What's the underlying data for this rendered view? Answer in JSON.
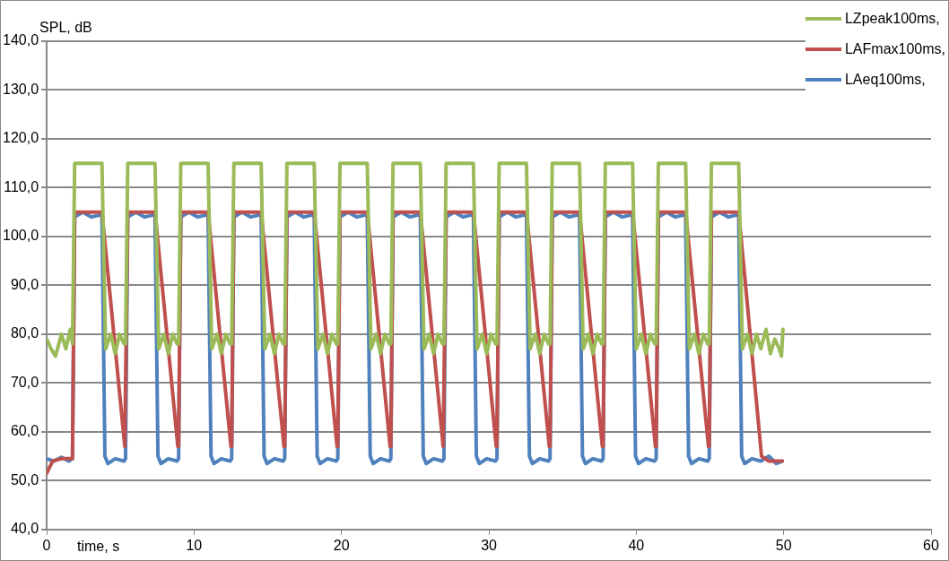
{
  "chart_data": {
    "type": "line",
    "xlabel": "time, s",
    "ylabel": "SPL, dB",
    "legend": "top right",
    "grid": "y",
    "marker": "none",
    "line_style": "solid",
    "xlim": [
      0,
      60
    ],
    "xticks": [
      0,
      10,
      20,
      30,
      40,
      50,
      60
    ],
    "ylim": [
      40,
      140
    ],
    "yticks": [
      {
        "value": 40,
        "label": "40,0"
      },
      {
        "value": 50,
        "label": "50,0"
      },
      {
        "value": 60,
        "label": "60,0"
      },
      {
        "value": 70,
        "label": "70,0"
      },
      {
        "value": 80,
        "label": "80,0"
      },
      {
        "value": 90,
        "label": "90,0"
      },
      {
        "value": 100,
        "label": "100,0"
      },
      {
        "value": 110,
        "label": "110,0"
      },
      {
        "value": 120,
        "label": "120,0"
      },
      {
        "value": 130,
        "label": "130,0"
      },
      {
        "value": 140,
        "label": "140,0"
      }
    ],
    "series": [
      {
        "name": "LZpeak100ms,",
        "color": "#9bbb59",
        "x": [
          0,
          0.3,
          0.6,
          1.0,
          1.3,
          1.6,
          1.75,
          1.9,
          2.75,
          3.75,
          4,
          4.35,
          4.65,
          4.95,
          5.25,
          5.35,
          5.5,
          6.35,
          7.35,
          7.6,
          7.95,
          8.25,
          8.55,
          8.85,
          8.95,
          9.1,
          9.95,
          10.95,
          11.2,
          11.55,
          11.85,
          12.15,
          12.45,
          12.55,
          12.7,
          13.55,
          14.55,
          14.8,
          15.15,
          15.45,
          15.75,
          16.05,
          16.15,
          16.3,
          17.15,
          18.15,
          18.4,
          18.75,
          19.05,
          19.35,
          19.65,
          19.75,
          19.9,
          20.75,
          21.75,
          22,
          22.35,
          22.65,
          22.95,
          23.25,
          23.35,
          23.5,
          24.35,
          25.35,
          25.6,
          25.95,
          26.25,
          26.55,
          26.85,
          26.95,
          27.1,
          27.95,
          28.95,
          29.2,
          29.55,
          29.85,
          30.15,
          30.45,
          30.55,
          30.7,
          31.55,
          32.55,
          32.8,
          33.15,
          33.45,
          33.75,
          34.05,
          34.15,
          34.3,
          35.15,
          36.15,
          36.4,
          36.75,
          37.05,
          37.35,
          37.65,
          37.75,
          37.9,
          38.75,
          39.75,
          40,
          40.35,
          40.65,
          40.95,
          41.25,
          41.35,
          41.5,
          42.35,
          43.35,
          43.6,
          43.95,
          44.25,
          44.55,
          44.85,
          44.95,
          45.1,
          45.95,
          46.95,
          47.2,
          47.55,
          47.85,
          48.15,
          48.45,
          48.8,
          49.1,
          49.4,
          49.7,
          49.85,
          49.95
        ],
        "values": [
          79,
          77,
          75.5,
          80,
          77,
          81,
          78,
          115,
          115,
          115,
          77,
          80,
          76,
          80,
          78,
          78,
          115,
          115,
          115,
          77,
          80,
          76,
          80,
          78,
          78,
          115,
          115,
          115,
          77,
          80,
          76,
          80,
          78,
          78,
          115,
          115,
          115,
          77,
          80,
          76,
          80,
          78,
          78,
          115,
          115,
          115,
          77,
          80,
          76,
          80,
          78,
          78,
          115,
          115,
          115,
          77,
          80,
          76,
          80,
          78,
          78,
          115,
          115,
          115,
          77,
          80,
          76,
          80,
          78,
          78,
          115,
          115,
          115,
          77,
          80,
          76,
          80,
          78,
          78,
          115,
          115,
          115,
          77,
          80,
          76,
          80,
          78,
          78,
          115,
          115,
          115,
          77,
          80,
          76,
          80,
          78,
          78,
          115,
          115,
          115,
          77,
          80,
          76,
          80,
          78,
          78,
          115,
          115,
          115,
          77,
          80,
          76,
          80,
          78,
          78,
          115,
          115,
          115,
          77,
          80,
          76,
          80,
          77,
          81,
          76,
          79,
          77,
          75.5,
          81
        ]
      },
      {
        "name": "LAFmax100ms,",
        "color": "#c0504d",
        "x": [
          0,
          0.4,
          1,
          1.75,
          1.9,
          3.75,
          5.3,
          5.35,
          5.5,
          7.35,
          8.9,
          8.95,
          9.1,
          10.95,
          12.5,
          12.55,
          12.7,
          14.55,
          16.1,
          16.15,
          16.3,
          18.15,
          19.7,
          19.75,
          19.9,
          21.75,
          23.3,
          23.35,
          23.5,
          25.35,
          26.9,
          26.95,
          27.1,
          28.95,
          30.5,
          30.55,
          30.7,
          32.55,
          34.1,
          34.15,
          34.3,
          36.15,
          37.7,
          37.75,
          37.9,
          39.75,
          41.3,
          41.35,
          41.5,
          43.35,
          44.9,
          44.95,
          45.1,
          46.95,
          48.5,
          49.0,
          49.9
        ],
        "values": [
          51.5,
          54,
          54.5,
          54.5,
          105,
          105,
          57,
          57,
          105,
          105,
          57,
          57,
          105,
          105,
          57,
          57,
          105,
          105,
          57,
          57,
          105,
          105,
          57,
          57,
          105,
          105,
          57,
          57,
          105,
          105,
          57,
          57,
          105,
          105,
          57,
          57,
          105,
          105,
          57,
          57,
          105,
          105,
          57,
          57,
          105,
          105,
          57,
          57,
          105,
          105,
          57,
          57,
          105,
          105,
          55,
          54,
          54
        ]
      },
      {
        "name": "LAeq100ms,",
        "color": "#4f81bd",
        "x": [
          0,
          0.5,
          1,
          1.5,
          1.75,
          1.9,
          2.45,
          3.05,
          3.75,
          3.95,
          4.15,
          4.65,
          5.25,
          5.35,
          5.5,
          6.05,
          6.65,
          7.35,
          7.55,
          7.75,
          8.25,
          8.85,
          8.95,
          9.1,
          9.65,
          10.25,
          10.95,
          11.15,
          11.35,
          11.85,
          12.45,
          12.55,
          12.7,
          13.25,
          13.85,
          14.55,
          14.75,
          14.95,
          15.45,
          16.05,
          16.15,
          16.3,
          16.85,
          17.45,
          18.15,
          18.35,
          18.55,
          19.05,
          19.65,
          19.75,
          19.9,
          20.45,
          21.05,
          21.75,
          21.95,
          22.15,
          22.65,
          23.25,
          23.35,
          23.5,
          24.05,
          24.65,
          25.35,
          25.55,
          25.75,
          26.25,
          26.85,
          26.95,
          27.1,
          27.65,
          28.25,
          28.95,
          29.15,
          29.35,
          29.85,
          30.45,
          30.55,
          30.7,
          31.25,
          31.85,
          32.55,
          32.75,
          32.95,
          33.45,
          34.05,
          34.15,
          34.3,
          34.85,
          35.45,
          36.15,
          36.35,
          36.55,
          37.05,
          37.65,
          37.75,
          37.9,
          38.45,
          39.05,
          39.75,
          39.95,
          40.15,
          40.65,
          41.25,
          41.35,
          41.5,
          42.05,
          42.65,
          43.35,
          43.55,
          43.75,
          44.25,
          44.85,
          44.95,
          45.1,
          45.65,
          46.25,
          46.95,
          47.15,
          47.35,
          47.85,
          48.45,
          49.0,
          49.5,
          49.9
        ],
        "values": [
          54.5,
          54,
          54.8,
          54,
          54.5,
          104,
          105,
          104,
          104.5,
          55,
          53.5,
          54.5,
          54,
          54.5,
          104,
          105,
          104,
          104.5,
          55,
          53.5,
          54.5,
          54,
          54.5,
          104,
          105,
          104,
          104.5,
          55,
          53.5,
          54.5,
          54,
          54.5,
          104,
          105,
          104,
          104.5,
          55,
          53.5,
          54.5,
          54,
          54.5,
          104,
          105,
          104,
          104.5,
          55,
          53.5,
          54.5,
          54,
          54.5,
          104,
          105,
          104,
          104.5,
          55,
          53.5,
          54.5,
          54,
          54.5,
          104,
          105,
          104,
          104.5,
          55,
          53.5,
          54.5,
          54,
          54.5,
          104,
          105,
          104,
          104.5,
          55,
          53.5,
          54.5,
          54,
          54.5,
          104,
          105,
          104,
          104.5,
          55,
          53.5,
          54.5,
          54,
          54.5,
          104,
          105,
          104,
          104.5,
          55,
          53.5,
          54.5,
          54,
          54.5,
          104,
          105,
          104,
          104.5,
          55,
          53.5,
          54.5,
          54,
          54.5,
          104,
          105,
          104,
          104.5,
          55,
          53.5,
          54.5,
          54,
          54.5,
          104,
          105,
          104,
          104.5,
          55,
          53.5,
          54.5,
          54,
          55,
          53.5,
          54
        ]
      }
    ]
  }
}
